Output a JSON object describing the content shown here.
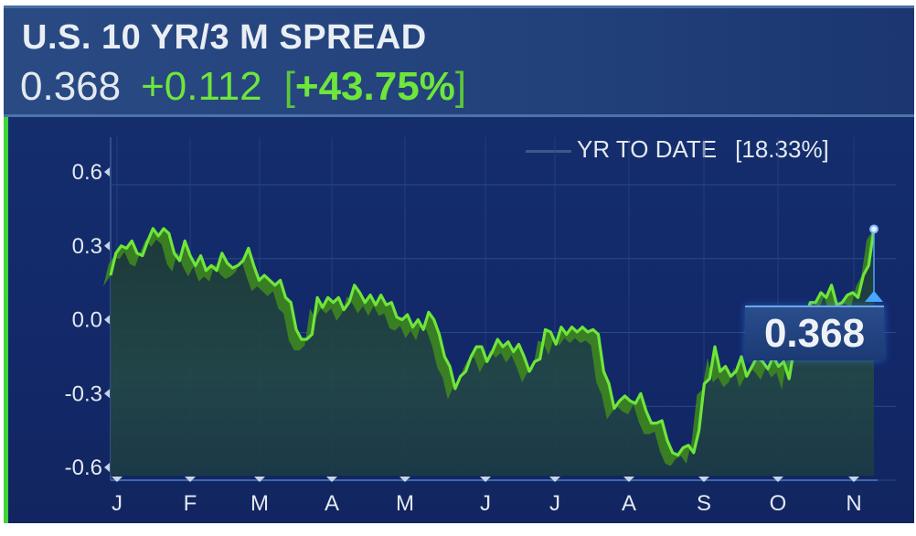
{
  "header": {
    "title": "U.S. 10 YR/3 M SPREAD",
    "last": "0.368",
    "change": "+0.112",
    "change_pct": "+43.75%",
    "bracket_open": "[",
    "bracket_close": "]"
  },
  "legend": {
    "label": "YR TO DATE",
    "value": "[18.33%]"
  },
  "callout": "0.368",
  "colors": {
    "line": "#6ee63a",
    "extrusion": "#3f8a1e",
    "background": "#14306e",
    "accent_bar": "#3fd43a",
    "marker": "#4aa8ff"
  },
  "chart_data": {
    "type": "area",
    "title": "U.S. 10 YR/3 M SPREAD",
    "xlabel": "",
    "ylabel": "",
    "ylim": [
      -0.6,
      0.6
    ],
    "yticks": [
      "0.6",
      "0.3",
      "0.0",
      "-0.3",
      "-0.6"
    ],
    "yticks_values": [
      0.6,
      0.3,
      0.0,
      -0.3,
      -0.6
    ],
    "xticks": [
      "J",
      "F",
      "M",
      "A",
      "M",
      "J",
      "J",
      "A",
      "S",
      "O",
      "N"
    ],
    "grid": true,
    "last_value": 0.368,
    "series": [
      {
        "values": [
          0.18,
          0.27,
          0.3,
          0.29,
          0.32,
          0.27,
          0.26,
          0.32,
          0.37,
          0.34,
          0.37,
          0.35,
          0.27,
          0.24,
          0.32,
          0.26,
          0.22,
          0.26,
          0.2,
          0.22,
          0.2,
          0.27,
          0.23,
          0.21,
          0.22,
          0.24,
          0.29,
          0.22,
          0.16,
          0.18,
          0.16,
          0.14,
          0.16,
          0.09,
          0.07,
          -0.04,
          -0.08,
          -0.08,
          -0.06,
          0.09,
          0.05,
          0.09,
          0.07,
          0.09,
          0.04,
          0.07,
          0.14,
          0.11,
          0.07,
          0.1,
          0.06,
          0.1,
          0.06,
          0.07,
          0.01,
          0.0,
          0.02,
          -0.03,
          0.0,
          -0.04,
          0.03,
          0.0,
          -0.06,
          -0.15,
          -0.19,
          -0.28,
          -0.23,
          -0.21,
          -0.15,
          -0.11,
          -0.11,
          -0.17,
          -0.13,
          -0.08,
          -0.11,
          -0.09,
          -0.13,
          -0.1,
          -0.15,
          -0.21,
          -0.17,
          -0.16,
          -0.04,
          -0.05,
          -0.1,
          -0.03,
          -0.06,
          -0.03,
          -0.05,
          -0.03,
          -0.05,
          -0.04,
          -0.06,
          -0.21,
          -0.26,
          -0.36,
          -0.33,
          -0.31,
          -0.33,
          -0.34,
          -0.3,
          -0.37,
          -0.42,
          -0.42,
          -0.41,
          -0.49,
          -0.54,
          -0.55,
          -0.52,
          -0.51,
          -0.54,
          -0.45,
          -0.26,
          -0.24,
          -0.11,
          -0.21,
          -0.19,
          -0.23,
          -0.21,
          -0.15,
          -0.23,
          -0.19,
          -0.15,
          -0.17,
          -0.2,
          -0.15,
          -0.19,
          -0.17,
          -0.24,
          -0.11,
          -0.06,
          0.01,
          0.07,
          0.07,
          0.11,
          0.09,
          0.14,
          0.06,
          0.07,
          0.1,
          0.11,
          0.09,
          0.18,
          0.22,
          0.368
        ]
      }
    ]
  }
}
